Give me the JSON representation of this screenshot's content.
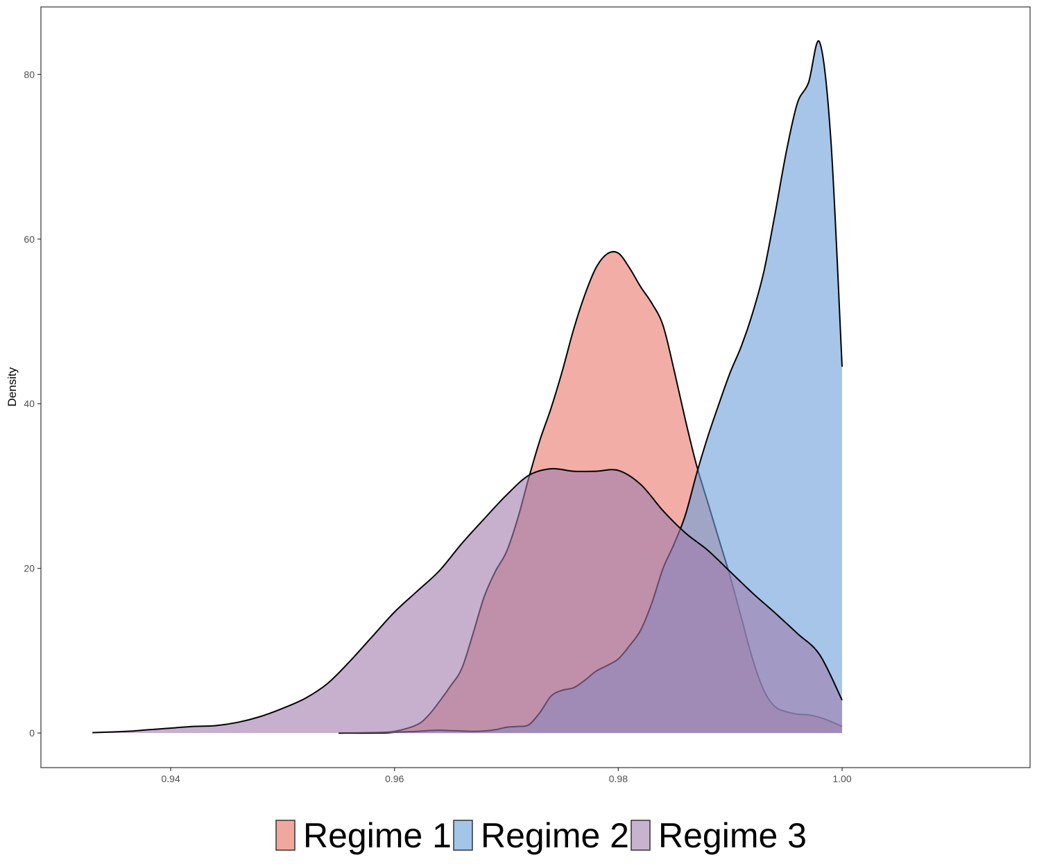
{
  "chart_data": {
    "type": "area",
    "subtype": "density",
    "title": "",
    "xlabel": "",
    "ylabel": "Density",
    "xlim": [
      0.9284,
      1.0168
    ],
    "ylim": [
      -4.2,
      88.2
    ],
    "x_ticks": [
      0.94,
      0.96,
      0.98,
      1.0
    ],
    "x_tick_labels": [
      "0.94",
      "0.96",
      "0.98",
      "1.00"
    ],
    "y_ticks": [
      0,
      20,
      40,
      60,
      80
    ],
    "y_tick_labels": [
      "0",
      "20",
      "40",
      "60",
      "80"
    ],
    "grid": false,
    "legend_position": "bottom",
    "series": [
      {
        "name": "Regime 1",
        "color": "#E8776B",
        "points": [
          [
            0.955,
            0.0
          ],
          [
            0.958,
            0.05
          ],
          [
            0.96,
            0.2
          ],
          [
            0.962,
            1.0
          ],
          [
            0.963,
            2.1
          ],
          [
            0.964,
            3.8
          ],
          [
            0.965,
            5.7
          ],
          [
            0.966,
            7.8
          ],
          [
            0.967,
            12.0
          ],
          [
            0.968,
            16.5
          ],
          [
            0.969,
            19.6
          ],
          [
            0.97,
            22.0
          ],
          [
            0.971,
            26.0
          ],
          [
            0.972,
            31.0
          ],
          [
            0.973,
            35.6
          ],
          [
            0.974,
            39.5
          ],
          [
            0.975,
            44.0
          ],
          [
            0.976,
            49.0
          ],
          [
            0.977,
            53.2
          ],
          [
            0.978,
            56.5
          ],
          [
            0.979,
            58.2
          ],
          [
            0.98,
            58.3
          ],
          [
            0.981,
            56.5
          ],
          [
            0.982,
            54.2
          ],
          [
            0.983,
            52.2
          ],
          [
            0.984,
            49.5
          ],
          [
            0.985,
            44.0
          ],
          [
            0.986,
            38.0
          ],
          [
            0.987,
            32.5
          ],
          [
            0.988,
            28.0
          ],
          [
            0.989,
            23.5
          ],
          [
            0.99,
            19.0
          ],
          [
            0.991,
            14.0
          ],
          [
            0.992,
            9.0
          ],
          [
            0.993,
            5.2
          ],
          [
            0.994,
            3.2
          ],
          [
            0.995,
            2.6
          ],
          [
            0.996,
            2.3
          ],
          [
            0.997,
            2.2
          ],
          [
            0.998,
            1.9
          ],
          [
            0.999,
            1.4
          ],
          [
            1.0,
            0.8
          ]
        ]
      },
      {
        "name": "Regime 2",
        "color": "#6A9FDB",
        "points": [
          [
            0.955,
            0.0
          ],
          [
            0.959,
            0.0
          ],
          [
            0.96,
            0.1
          ],
          [
            0.961,
            0.15
          ],
          [
            0.962,
            0.2
          ],
          [
            0.963,
            0.3
          ],
          [
            0.964,
            0.35
          ],
          [
            0.965,
            0.3
          ],
          [
            0.966,
            0.25
          ],
          [
            0.967,
            0.2
          ],
          [
            0.968,
            0.25
          ],
          [
            0.969,
            0.4
          ],
          [
            0.97,
            0.7
          ],
          [
            0.971,
            0.8
          ],
          [
            0.972,
            1.0
          ],
          [
            0.973,
            2.5
          ],
          [
            0.974,
            4.5
          ],
          [
            0.975,
            5.2
          ],
          [
            0.976,
            5.5
          ],
          [
            0.977,
            6.4
          ],
          [
            0.978,
            7.5
          ],
          [
            0.979,
            8.2
          ],
          [
            0.98,
            9.0
          ],
          [
            0.981,
            10.6
          ],
          [
            0.982,
            12.5
          ],
          [
            0.983,
            15.8
          ],
          [
            0.984,
            20.0
          ],
          [
            0.985,
            23.0
          ],
          [
            0.986,
            26.5
          ],
          [
            0.987,
            31.5
          ],
          [
            0.988,
            36.0
          ],
          [
            0.989,
            40.0
          ],
          [
            0.99,
            43.8
          ],
          [
            0.991,
            47.0
          ],
          [
            0.992,
            51.0
          ],
          [
            0.993,
            56.0
          ],
          [
            0.994,
            63.0
          ],
          [
            0.995,
            70.5
          ],
          [
            0.996,
            76.5
          ],
          [
            0.997,
            79.0
          ],
          [
            0.998,
            83.9
          ],
          [
            0.999,
            72.0
          ],
          [
            1.0,
            44.5
          ]
        ]
      },
      {
        "name": "Regime 3",
        "color": "#A07BAD",
        "points": [
          [
            0.933,
            0.05
          ],
          [
            0.936,
            0.2
          ],
          [
            0.938,
            0.4
          ],
          [
            0.94,
            0.6
          ],
          [
            0.942,
            0.8
          ],
          [
            0.944,
            0.9
          ],
          [
            0.946,
            1.3
          ],
          [
            0.948,
            2.0
          ],
          [
            0.95,
            3.0
          ],
          [
            0.952,
            4.2
          ],
          [
            0.954,
            6.0
          ],
          [
            0.956,
            8.7
          ],
          [
            0.958,
            11.7
          ],
          [
            0.96,
            14.7
          ],
          [
            0.962,
            17.2
          ],
          [
            0.964,
            19.7
          ],
          [
            0.966,
            23.0
          ],
          [
            0.968,
            26.0
          ],
          [
            0.97,
            28.9
          ],
          [
            0.972,
            31.3
          ],
          [
            0.974,
            32.1
          ],
          [
            0.976,
            31.8
          ],
          [
            0.978,
            31.8
          ],
          [
            0.98,
            31.9
          ],
          [
            0.982,
            30.2
          ],
          [
            0.984,
            27.0
          ],
          [
            0.986,
            24.3
          ],
          [
            0.988,
            22.2
          ],
          [
            0.99,
            19.6
          ],
          [
            0.992,
            17.0
          ],
          [
            0.994,
            14.6
          ],
          [
            0.996,
            12.1
          ],
          [
            0.998,
            9.5
          ],
          [
            1.0,
            4.0
          ]
        ]
      }
    ]
  },
  "legend": {
    "items": [
      {
        "label": "Regime 1",
        "color": "#F0A79E"
      },
      {
        "label": "Regime 2",
        "color": "#A2C5E8"
      },
      {
        "label": "Regime 3",
        "color": "#C8B3CF"
      }
    ]
  }
}
